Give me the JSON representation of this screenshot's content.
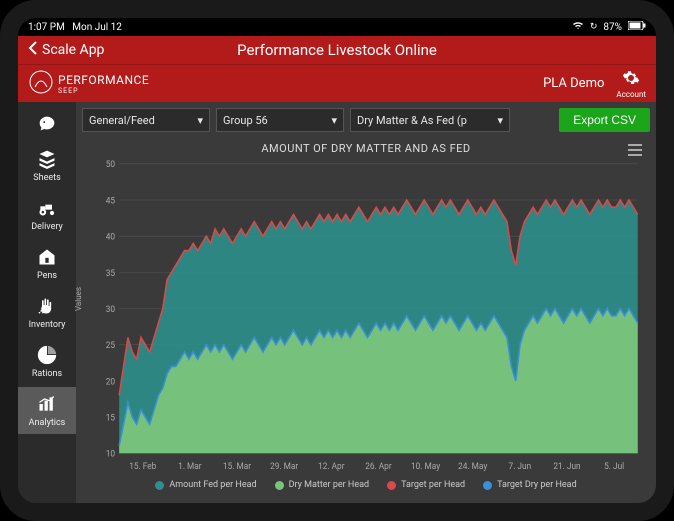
{
  "status": {
    "time": "1:07 PM",
    "date": "Mon Jul 12",
    "battery": "87%"
  },
  "header": {
    "back": "Scale App",
    "title": "Performance Livestock Online"
  },
  "subheader": {
    "logo_top": "PERFORMANCE",
    "logo_sub": "SEEP",
    "user": "PLA Demo",
    "account": "Account"
  },
  "sidebar": {
    "items": [
      {
        "label": "",
        "icon": "pig"
      },
      {
        "label": "Sheets",
        "icon": "sheets"
      },
      {
        "label": "Delivery",
        "icon": "tractor"
      },
      {
        "label": "Pens",
        "icon": "barn"
      },
      {
        "label": "Inventory",
        "icon": "hand"
      },
      {
        "label": "Rations",
        "icon": "pie"
      },
      {
        "label": "Analytics",
        "icon": "chart",
        "active": true
      }
    ]
  },
  "filters": {
    "f1": "General/Feed",
    "f2": "Group 56",
    "f3": "Dry Matter & As Fed (p",
    "export": "Export CSV"
  },
  "chart": {
    "title": "AMOUNT OF DRY MATTER AND AS FED",
    "ylabel": "Values",
    "type": "area-line",
    "background_color": "#3a3a3a",
    "grid_color": "#555555",
    "axis_color": "#888888",
    "tick_font_color": "#aaaaaa",
    "tick_fontsize": 8,
    "ylim": [
      10,
      50
    ],
    "ytick_step": 5,
    "x_labels": [
      "15. Feb",
      "1. Mar",
      "15. Mar",
      "29. Mar",
      "12. Apr",
      "26. Apr",
      "10. May",
      "24. May",
      "7. Jun",
      "21. Jun",
      "5. Jul"
    ],
    "n_points": 120,
    "series": {
      "amount_fed": {
        "label": "Amount Fed per Head",
        "color": "#2e8f8c",
        "fill_to": 10,
        "kind": "area"
      },
      "dry_matter": {
        "label": "Dry Matter per Head",
        "color": "#7ac47a",
        "fill_to": 10,
        "kind": "area"
      },
      "target": {
        "label": "Target per Head",
        "color": "#d94a4a",
        "kind": "line",
        "width": 1.5
      },
      "target_dry": {
        "label": "Target Dry per Head",
        "color": "#3a8fd6",
        "kind": "line",
        "width": 1.5
      }
    },
    "data": {
      "amount_fed": [
        18,
        22,
        26,
        24,
        23,
        26,
        25,
        24,
        26,
        28,
        30,
        34,
        35,
        36,
        37,
        38,
        38,
        39,
        38,
        39,
        40,
        39,
        41,
        40,
        41,
        40,
        39,
        40,
        41,
        40,
        41,
        42,
        41,
        40,
        41,
        42,
        41,
        42,
        41,
        42,
        43,
        42,
        41,
        42,
        41,
        42,
        43,
        42,
        43,
        42,
        43,
        42,
        43,
        42,
        43,
        44,
        43,
        42,
        43,
        44,
        43,
        44,
        43,
        44,
        43,
        44,
        45,
        44,
        43,
        44,
        45,
        44,
        43,
        44,
        45,
        44,
        45,
        44,
        43,
        44,
        45,
        44,
        43,
        44,
        43,
        44,
        45,
        44,
        43,
        42,
        38,
        36,
        40,
        42,
        43,
        44,
        43,
        44,
        45,
        44,
        45,
        44,
        43,
        44,
        45,
        44,
        45,
        44,
        43,
        44,
        45,
        44,
        45,
        44,
        44,
        45,
        44,
        45,
        44,
        43
      ],
      "dry_matter": [
        11,
        14,
        17,
        15,
        14,
        16,
        15,
        14,
        16,
        18,
        19,
        21,
        22,
        22,
        23,
        24,
        23,
        24,
        23,
        24,
        25,
        24,
        25,
        24,
        25,
        24,
        23,
        24,
        25,
        24,
        25,
        26,
        25,
        24,
        25,
        26,
        25,
        26,
        25,
        26,
        27,
        26,
        25,
        26,
        25,
        26,
        27,
        26,
        27,
        26,
        27,
        26,
        27,
        26,
        27,
        28,
        27,
        26,
        27,
        28,
        27,
        28,
        27,
        28,
        27,
        28,
        29,
        28,
        27,
        28,
        29,
        28,
        27,
        28,
        29,
        28,
        29,
        28,
        27,
        28,
        29,
        28,
        27,
        28,
        27,
        28,
        29,
        28,
        27,
        26,
        22,
        20,
        25,
        27,
        28,
        29,
        28,
        29,
        30,
        29,
        30,
        29,
        28,
        29,
        30,
        29,
        30,
        29,
        28,
        29,
        30,
        29,
        30,
        29,
        29,
        30,
        29,
        30,
        29,
        28
      ],
      "target": [
        18,
        22,
        26,
        24,
        23,
        26,
        25,
        24,
        26,
        28,
        30,
        34,
        35,
        36,
        37,
        38,
        38,
        39,
        38,
        39,
        40,
        39,
        41,
        40,
        41,
        40,
        39,
        40,
        41,
        40,
        41,
        42,
        41,
        40,
        41,
        42,
        41,
        42,
        41,
        42,
        43,
        42,
        41,
        42,
        41,
        42,
        43,
        42,
        43,
        42,
        43,
        42,
        43,
        42,
        43,
        44,
        43,
        42,
        43,
        44,
        43,
        44,
        43,
        44,
        43,
        44,
        45,
        44,
        43,
        44,
        45,
        44,
        43,
        44,
        45,
        44,
        45,
        44,
        43,
        44,
        45,
        44,
        43,
        44,
        43,
        44,
        45,
        44,
        43,
        42,
        38,
        36,
        40,
        42,
        43,
        44,
        43,
        44,
        45,
        44,
        45,
        44,
        43,
        44,
        45,
        44,
        45,
        44,
        43,
        44,
        45,
        44,
        45,
        44,
        44,
        45,
        44,
        45,
        44,
        43
      ],
      "target_dry": [
        11,
        14,
        17,
        15,
        14,
        16,
        15,
        14,
        16,
        18,
        19,
        21,
        22,
        22,
        23,
        24,
        23,
        24,
        23,
        24,
        25,
        24,
        25,
        24,
        25,
        24,
        23,
        24,
        25,
        24,
        25,
        26,
        25,
        24,
        25,
        26,
        25,
        26,
        25,
        26,
        27,
        26,
        25,
        26,
        25,
        26,
        27,
        26,
        27,
        26,
        27,
        26,
        27,
        26,
        27,
        28,
        27,
        26,
        27,
        28,
        27,
        28,
        27,
        28,
        27,
        28,
        29,
        28,
        27,
        28,
        29,
        28,
        27,
        28,
        29,
        28,
        29,
        28,
        27,
        28,
        29,
        28,
        27,
        28,
        27,
        28,
        29,
        28,
        27,
        26,
        22,
        20,
        25,
        27,
        28,
        29,
        28,
        29,
        30,
        29,
        30,
        29,
        28,
        29,
        30,
        29,
        30,
        29,
        28,
        29,
        30,
        29,
        30,
        29,
        29,
        30,
        29,
        30,
        29,
        28
      ]
    }
  }
}
